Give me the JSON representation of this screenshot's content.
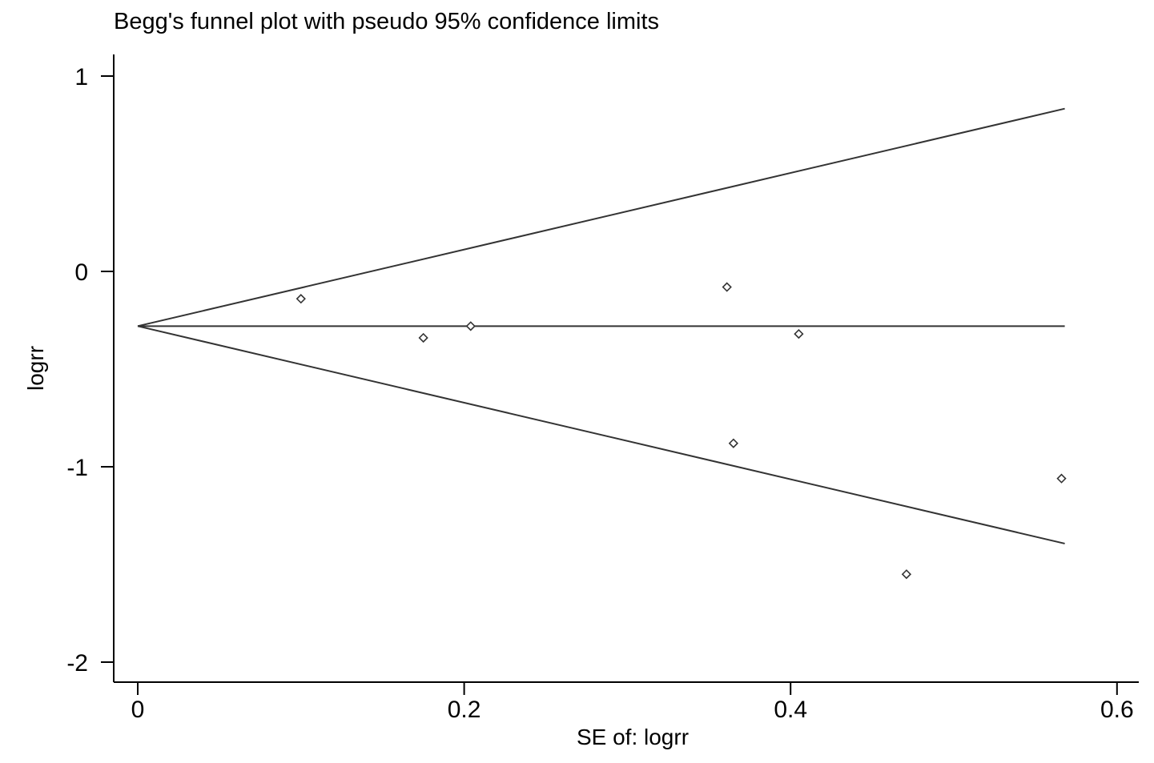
{
  "chart_data": {
    "type": "scatter",
    "title": "Begg's funnel plot with pseudo 95% confidence limits",
    "xlabel": "SE of: logrr",
    "ylabel": "logrr",
    "xlim": [
      -0.007,
      0.6
    ],
    "ylim": [
      -2.1,
      1.1
    ],
    "xticks": [
      0,
      0.2,
      0.4,
      0.6
    ],
    "xtick_labels": [
      "0",
      "0.2",
      "0.4",
      "0.6"
    ],
    "yticks": [
      1,
      0,
      -1,
      -2
    ],
    "ytick_labels": [
      "1",
      "0",
      "-1",
      "-2"
    ],
    "grid": false,
    "legend": "none",
    "series": [
      {
        "points": [
          {
            "x": 0.1,
            "y": -0.14
          },
          {
            "x": 0.175,
            "y": -0.34
          },
          {
            "x": 0.204,
            "y": -0.28
          },
          {
            "x": 0.361,
            "y": -0.08
          },
          {
            "x": 0.365,
            "y": -0.88
          },
          {
            "x": 0.405,
            "y": -0.32
          },
          {
            "x": 0.471,
            "y": -1.55
          },
          {
            "x": 0.566,
            "y": -1.06
          }
        ]
      }
    ],
    "reference_lines": {
      "pooled_estimate": -0.28,
      "z": 1.96,
      "se_range": [
        0,
        0.568
      ]
    },
    "colors": {
      "line": "#333333",
      "axis": "#000000",
      "marker": "#333333"
    }
  }
}
